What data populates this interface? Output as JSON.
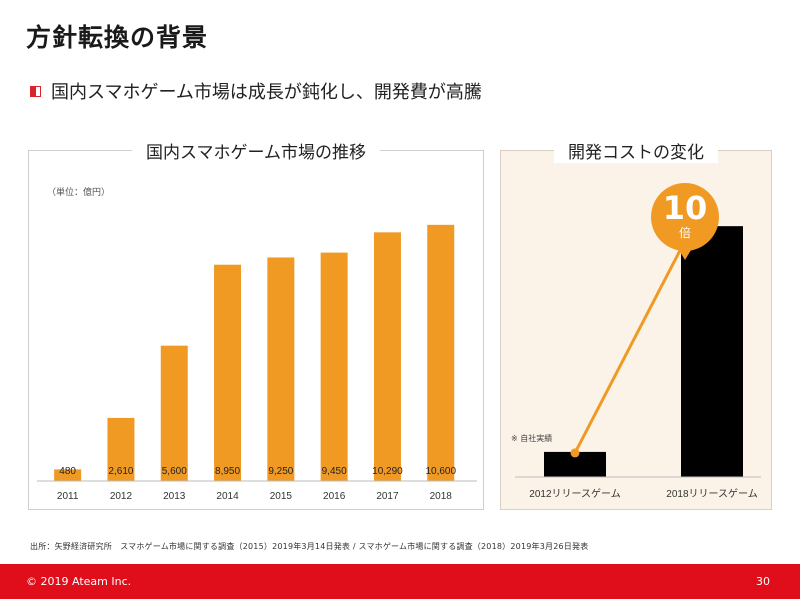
{
  "title": "方針転換の背景",
  "bullet": "国内スマホゲーム市場は成長が鈍化し、開発費が高騰",
  "left_panel": {
    "title": "国内スマホゲーム市場の推移",
    "unit_label": "（単位：億円）"
  },
  "right_panel": {
    "title": "開発コストの変化",
    "badge_number": "10",
    "badge_unit": "倍",
    "note": "※ 自社実績"
  },
  "colors": {
    "bar_orange": "#f09a24",
    "bar_black": "#000000",
    "accent_red": "#e00d1a"
  },
  "chart_data": [
    {
      "type": "bar",
      "title": "国内スマホゲーム市場の推移",
      "unit": "（単位：億円）",
      "categories": [
        "2011",
        "2012",
        "2013",
        "2014",
        "2015",
        "2016",
        "2017",
        "2018"
      ],
      "values": [
        480,
        2610,
        5600,
        8950,
        9250,
        9450,
        10290,
        10600
      ],
      "value_labels": [
        "480",
        "2,610",
        "5,600",
        "8,950",
        "9,250",
        "9,450",
        "10,290",
        "10,600"
      ],
      "ylim": [
        0,
        12000
      ],
      "grid": false,
      "color": "#f09a24"
    },
    {
      "type": "bar",
      "title": "開発コストの変化",
      "categories": [
        "2012リリースゲーム",
        "2018リリースゲーム"
      ],
      "values": [
        1,
        10
      ],
      "ylim": [
        0,
        12
      ],
      "color": "#000000",
      "annotation": "10倍"
    }
  ],
  "source": "出所：矢野経済研究所　スマホゲーム市場に関する調査（2015）2019年3月14日発表 / スマホゲーム市場に関する調査（2018）2019年3月26日発表",
  "footer": {
    "copyright": "© 2019 Ateam Inc.",
    "page_number": "30"
  }
}
